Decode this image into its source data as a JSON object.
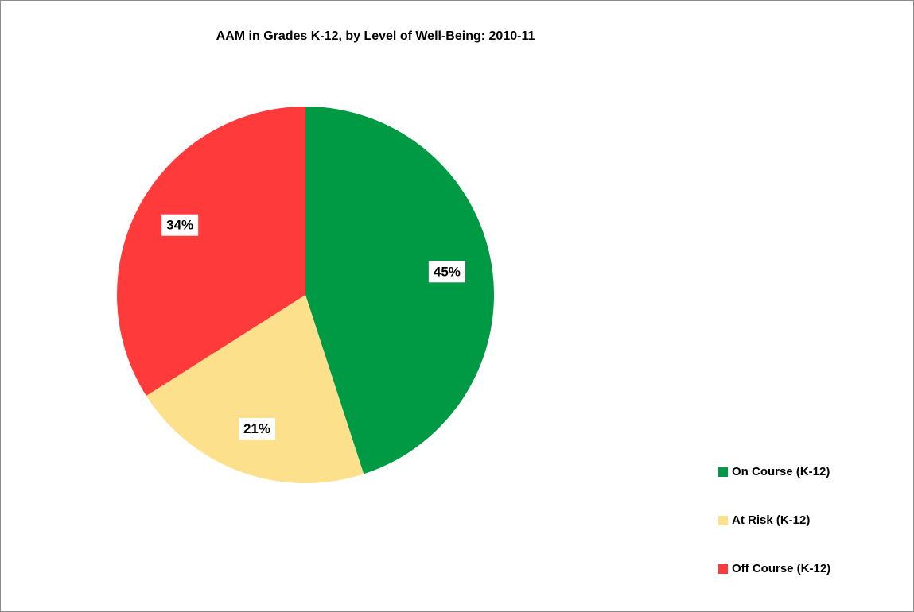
{
  "chart_data": {
    "type": "pie",
    "title": "AAM in Grades K-12, by Level of Well-Being: 2010-11",
    "categories": [
      "On Course (K-12)",
      "At Risk (K-12)",
      "Off Course (K-12)"
    ],
    "values": [
      45,
      21,
      34
    ],
    "value_labels": [
      "45%",
      "21%",
      "34%"
    ],
    "colors": [
      "#009a44",
      "#fde08c",
      "#ff3a3a"
    ],
    "legend": "right"
  }
}
